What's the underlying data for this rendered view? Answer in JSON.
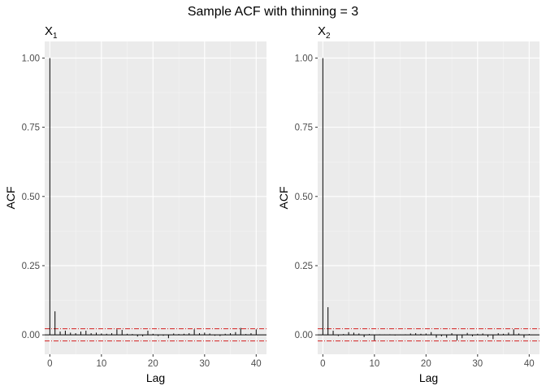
{
  "figure": {
    "title": "Sample ACF with thinning = 3"
  },
  "chart_data": [
    {
      "type": "bar",
      "title": "X",
      "title_subscript": "1",
      "xlabel": "Lag",
      "ylabel": "ACF",
      "xlim": [
        -1,
        42
      ],
      "ylim": [
        -0.07,
        1.06
      ],
      "xticks": [
        0,
        10,
        20,
        30,
        40
      ],
      "yticks": [
        0.0,
        0.25,
        0.5,
        0.75,
        1.0
      ],
      "ytick_labels": [
        "0.00",
        "0.25",
        "0.50",
        "0.75",
        "1.00"
      ],
      "grid": true,
      "confidence_bounds": [
        0.022,
        -0.022
      ],
      "x": [
        0,
        1,
        2,
        3,
        4,
        5,
        6,
        7,
        8,
        9,
        10,
        11,
        12,
        13,
        14,
        15,
        16,
        17,
        18,
        19,
        20,
        21,
        22,
        23,
        24,
        25,
        26,
        27,
        28,
        29,
        30,
        31,
        32,
        33,
        34,
        35,
        36,
        37,
        38,
        39,
        40
      ],
      "values": [
        1.0,
        0.085,
        0.012,
        0.015,
        0.008,
        0.006,
        0.012,
        0.015,
        0.006,
        0.008,
        0.005,
        0.004,
        0.006,
        0.02,
        0.018,
        0.004,
        0.003,
        -0.006,
        -0.005,
        0.015,
        0.004,
        -0.004,
        -0.003,
        -0.012,
        0.005,
        0.003,
        0.004,
        0.006,
        0.02,
        0.006,
        0.008,
        0.005,
        -0.003,
        -0.004,
        0.004,
        0.006,
        0.01,
        0.025,
        0.003,
        0.006,
        0.02
      ]
    },
    {
      "type": "bar",
      "title": "X",
      "title_subscript": "2",
      "xlabel": "Lag",
      "ylabel": "ACF",
      "xlim": [
        -1,
        42
      ],
      "ylim": [
        -0.07,
        1.06
      ],
      "xticks": [
        0,
        10,
        20,
        30,
        40
      ],
      "yticks": [
        0.0,
        0.25,
        0.5,
        0.75,
        1.0
      ],
      "ytick_labels": [
        "0.00",
        "0.25",
        "0.50",
        "0.75",
        "1.00"
      ],
      "grid": true,
      "confidence_bounds": [
        0.022,
        -0.022
      ],
      "x": [
        0,
        1,
        2,
        3,
        4,
        5,
        6,
        7,
        8,
        9,
        10,
        11,
        12,
        13,
        14,
        15,
        16,
        17,
        18,
        19,
        20,
        21,
        22,
        23,
        24,
        25,
        26,
        27,
        28,
        29,
        30,
        31,
        32,
        33,
        34,
        35,
        36,
        37,
        38,
        39,
        40
      ],
      "values": [
        1.0,
        0.1,
        0.015,
        -0.004,
        0.003,
        0.01,
        0.008,
        0.005,
        -0.008,
        0.003,
        -0.02,
        0.002,
        0.001,
        0.002,
        -0.002,
        0.001,
        0.002,
        0.005,
        0.006,
        0.004,
        0.005,
        0.01,
        -0.01,
        -0.005,
        -0.01,
        0.006,
        -0.02,
        -0.012,
        0.007,
        -0.005,
        0.004,
        0.005,
        -0.007,
        -0.015,
        0.006,
        0.004,
        0.008,
        0.02,
        0.005,
        -0.01,
        0.003
      ]
    }
  ]
}
